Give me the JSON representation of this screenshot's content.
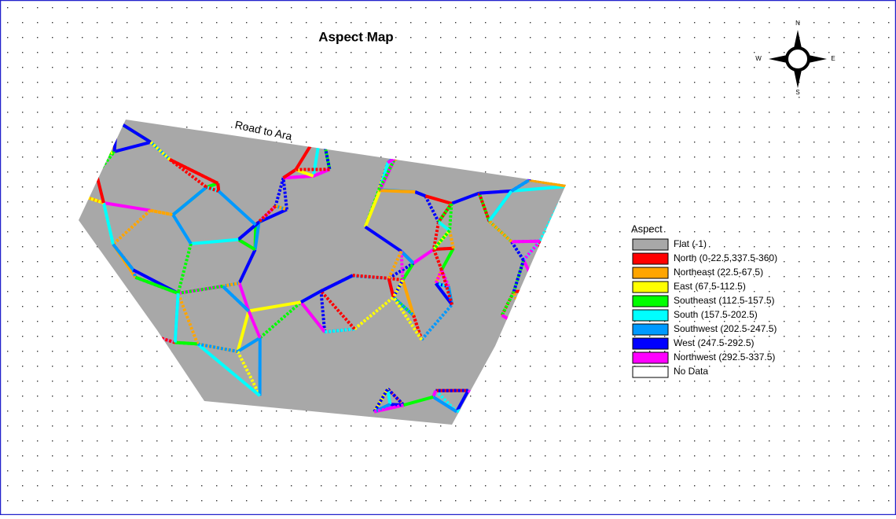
{
  "map": {
    "title": "Aspect Map",
    "road_label": "Road to Ara",
    "compass": {
      "north": "N",
      "east": "E",
      "south": "S",
      "west": "W"
    },
    "legend": {
      "title": "Aspect",
      "items": [
        {
          "label": "Flat (-1)",
          "color": "#a8a8a8"
        },
        {
          "label": "North (0-22.5,337.5-360)",
          "color": "#ff0000"
        },
        {
          "label": "Northeast (22.5-67.5)",
          "color": "#ffa500"
        },
        {
          "label": "East (67.5-112.5)",
          "color": "#ffff00"
        },
        {
          "label": "Southeast (112.5-157.5)",
          "color": "#00ff00"
        },
        {
          "label": "South (157.5-202.5)",
          "color": "#00ffff"
        },
        {
          "label": "Southwest (202.5-247.5)",
          "color": "#0099ff"
        },
        {
          "label": "West (247.5-292.5)",
          "color": "#0000ff"
        },
        {
          "label": "Northwest (292.5-337.5)",
          "color": "#ff00ff"
        },
        {
          "label": "No Data",
          "color": "#ffffff"
        }
      ]
    }
  }
}
